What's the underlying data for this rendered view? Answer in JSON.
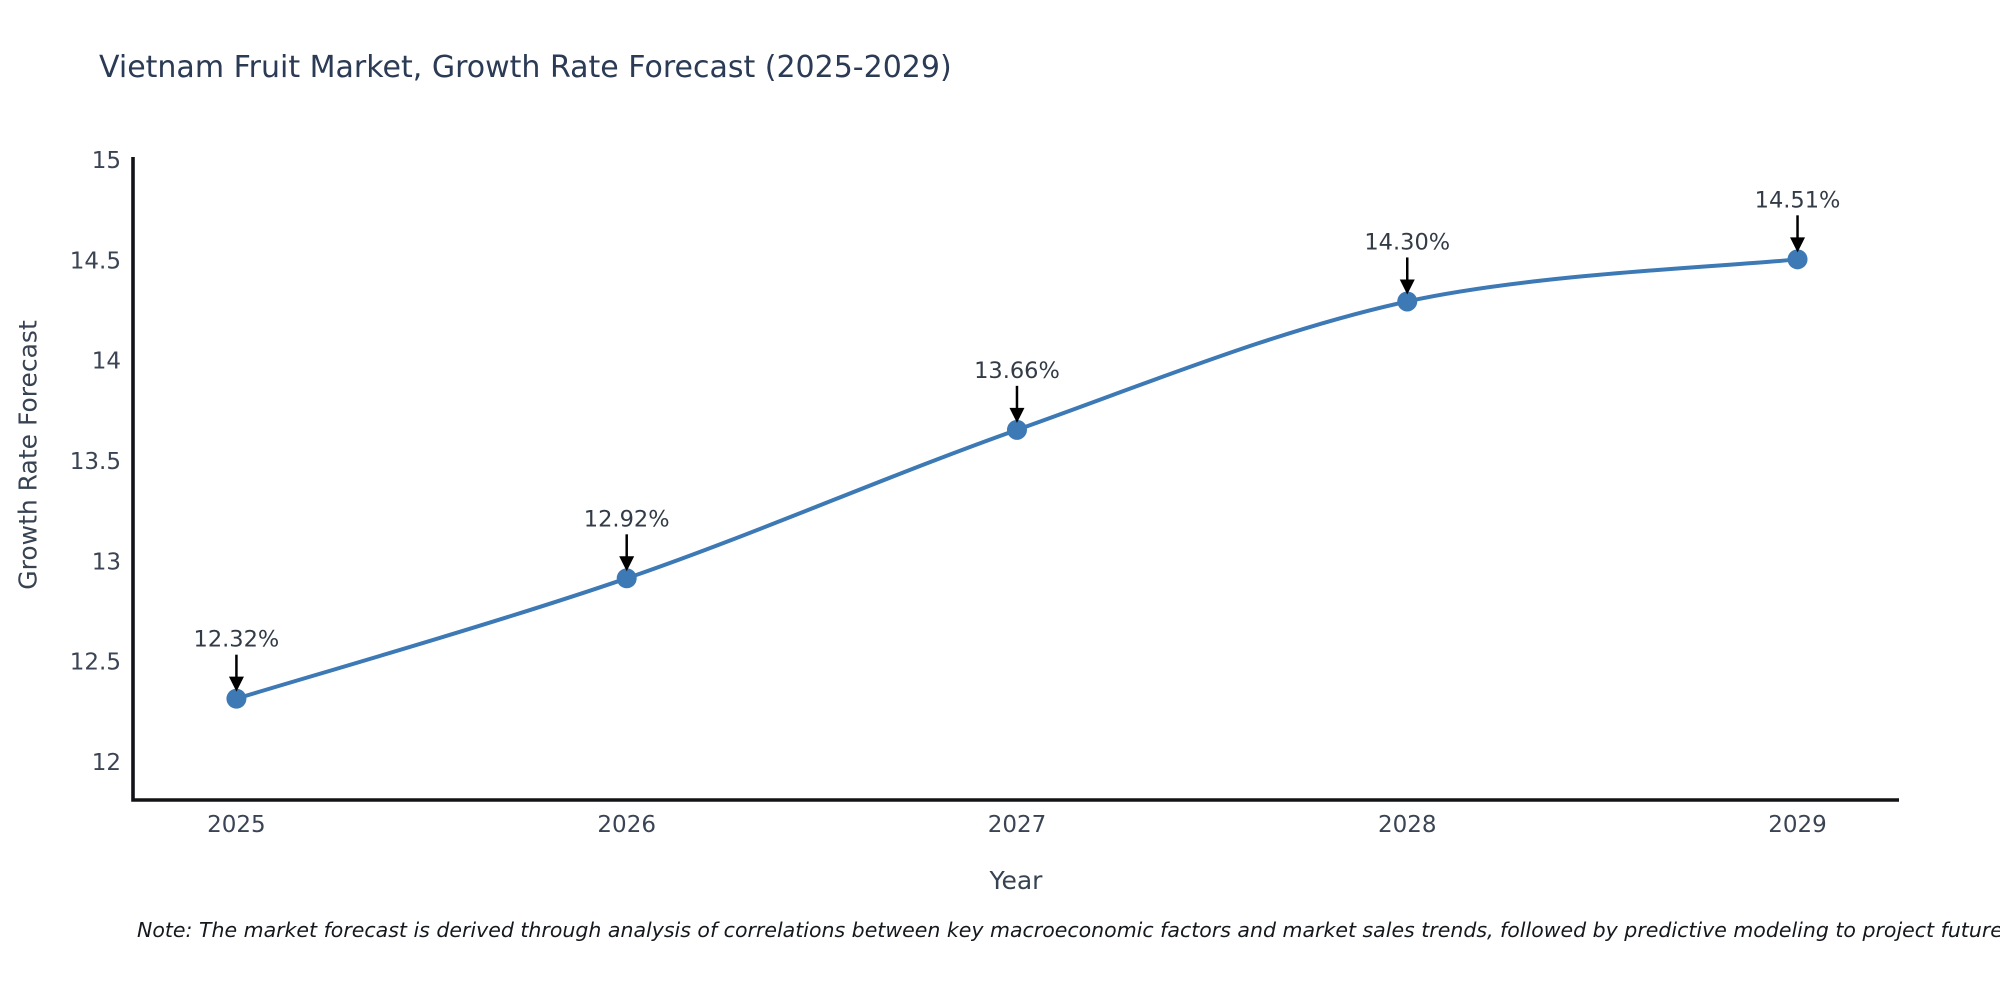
{
  "title": "Vietnam Fruit Market, Growth Rate Forecast (2025-2029)",
  "note": "Note: The market forecast is derived through analysis of correlations between key macroeconomic factors and market sales trends, followed by predictive modeling to project future sal",
  "chart_data": {
    "type": "line",
    "title": "Vietnam Fruit Market, Growth Rate Forecast (2025-2029)",
    "xlabel": "Year",
    "ylabel": "Growth Rate Forecast",
    "x": [
      2025,
      2026,
      2027,
      2028,
      2029
    ],
    "values": [
      12.32,
      12.92,
      13.66,
      14.3,
      14.51
    ],
    "data_labels": [
      "12.32%",
      "12.92%",
      "13.66%",
      "14.30%",
      "14.51%"
    ],
    "x_tick_labels": [
      "2025",
      "2026",
      "2027",
      "2028",
      "2029"
    ],
    "y_ticks": [
      12,
      12.5,
      13,
      13.5,
      14,
      14.5,
      15
    ],
    "y_tick_labels": [
      "12",
      "12.5",
      "13",
      "13.5",
      "14",
      "14.5",
      "15"
    ],
    "xlim": [
      2024.735,
      2029.26
    ],
    "ylim": [
      11.815,
      15.02
    ],
    "line_shape": "spline",
    "grid": false,
    "legend": false,
    "markers": true,
    "colors": {
      "line": "#3c79b5",
      "marker": "#3c79b5",
      "arrow": "#000000",
      "axis": "#111317",
      "title_text": "#2b3a55",
      "tick_text": "#3b4454",
      "annotation_text": "#333b47"
    }
  }
}
